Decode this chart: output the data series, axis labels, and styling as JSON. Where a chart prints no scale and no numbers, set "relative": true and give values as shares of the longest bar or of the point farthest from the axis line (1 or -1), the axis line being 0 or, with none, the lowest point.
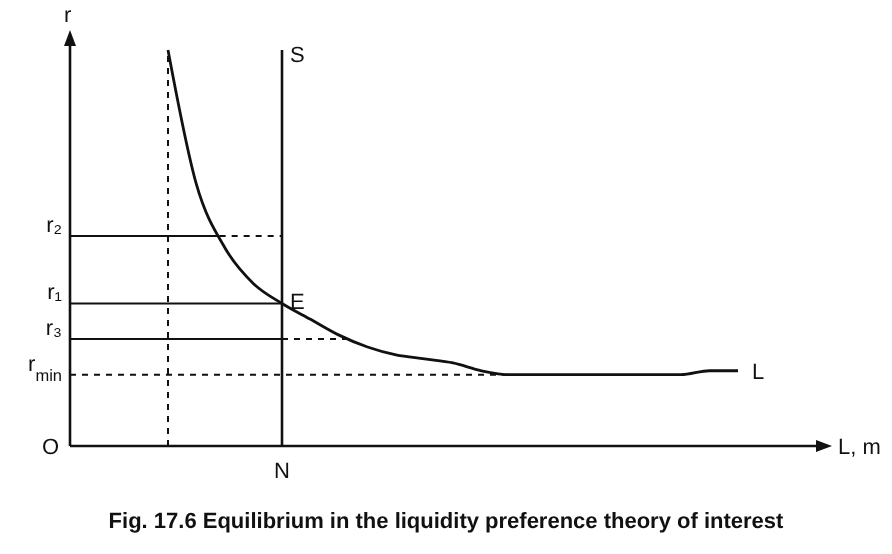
{
  "chart_data": {
    "type": "line",
    "relative": true,
    "title": "Fig. 17.6 Equilibrium in the liquidity preference theory of interest",
    "xlabel": "L, m",
    "ylabel": "r",
    "categories": [
      null,
      null,
      null,
      null,
      null,
      null,
      null,
      null,
      null,
      null,
      null,
      null,
      null,
      null,
      null,
      null,
      null,
      null,
      null,
      null,
      null
    ],
    "series": [
      {
        "name": "L",
        "color": "#111111",
        "values": [
          1,
          0.66,
          0.5,
          0.41,
          0.36,
          0.32,
          0.28,
          0.25,
          0.23,
          0.22,
          0.21,
          0.19,
          0.18,
          0.18,
          0.18,
          0.18,
          0.18,
          0.18,
          0.18,
          0.19,
          0.19
        ]
      }
    ],
    "ref_lines": [
      {
        "axis": "y",
        "value": 0.53,
        "label": "r₂",
        "line_style": "solid"
      },
      {
        "axis": "y",
        "value": 0.36,
        "label": "r₁",
        "line_style": "solid"
      },
      {
        "axis": "y",
        "value": 0.27,
        "label": "r₃",
        "line_style": "solid"
      },
      {
        "axis": "y",
        "value": 0.18,
        "label": "r$_{min}$",
        "line_style": "dashed"
      }
    ],
    "annotations": [
      "O",
      "E",
      "N",
      "S"
    ],
    "legend": false,
    "marker": "none",
    "line_style": "solid"
  }
}
